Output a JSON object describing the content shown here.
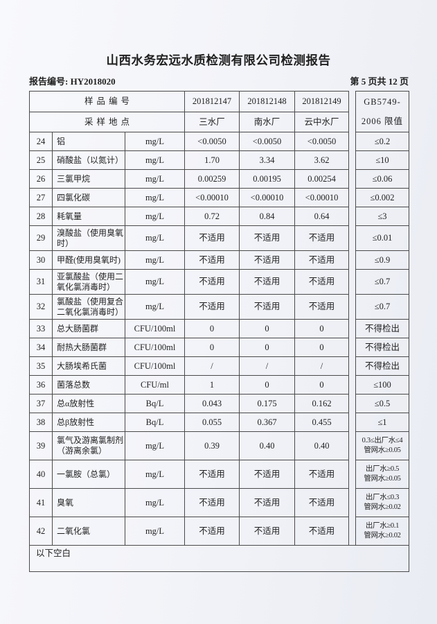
{
  "page": {
    "title": "山西水务宏远水质检测有限公司检测报告",
    "report_no": "报告编号: HY2018020",
    "page_info": "第 5 页共 12 页"
  },
  "table": {
    "header": {
      "sample_id_label": "样品编号",
      "location_label": "采样地点",
      "sample_ids": [
        "201812147",
        "201812148",
        "201812149"
      ],
      "locations": [
        "三水厂",
        "南水厂",
        "云中水厂"
      ],
      "limit_header": "GB5749-\n2006 限值"
    },
    "rows": [
      {
        "no": "24",
        "name": "铝",
        "unit": "mg/L",
        "values": [
          "<0.0050",
          "<0.0050",
          "<0.0050"
        ],
        "limit": "≤0.2"
      },
      {
        "no": "25",
        "name": "硝酸盐（以氮计）",
        "unit": "mg/L",
        "values": [
          "1.70",
          "3.34",
          "3.62"
        ],
        "limit": "≤10"
      },
      {
        "no": "26",
        "name": "三氯甲烷",
        "unit": "mg/L",
        "values": [
          "0.00259",
          "0.00195",
          "0.00254"
        ],
        "limit": "≤0.06"
      },
      {
        "no": "27",
        "name": "四氯化碳",
        "unit": "mg/L",
        "values": [
          "<0.00010",
          "<0.00010",
          "<0.00010"
        ],
        "limit": "≤0.002"
      },
      {
        "no": "28",
        "name": "耗氧量",
        "unit": "mg/L",
        "values": [
          "0.72",
          "0.84",
          "0.64"
        ],
        "limit": "≤3"
      },
      {
        "no": "29",
        "name": "溴酸盐（使用臭氧\n时）",
        "unit": "mg/L",
        "values": [
          "不适用",
          "不适用",
          "不适用"
        ],
        "limit": "≤0.01"
      },
      {
        "no": "30",
        "name": "甲醛(使用臭氧时)",
        "unit": "mg/L",
        "values": [
          "不适用",
          "不适用",
          "不适用"
        ],
        "limit": "≤0.9"
      },
      {
        "no": "31",
        "name": "亚氯酸盐（使用二\n氧化氯消毒时）",
        "unit": "mg/L",
        "values": [
          "不适用",
          "不适用",
          "不适用"
        ],
        "limit": "≤0.7"
      },
      {
        "no": "32",
        "name": "氯酸盐（使用复合\n二氧化氯消毒时）",
        "unit": "mg/L",
        "values": [
          "不适用",
          "不适用",
          "不适用"
        ],
        "limit": "≤0.7"
      },
      {
        "no": "33",
        "name": "总大肠菌群",
        "unit": "CFU/100ml",
        "values": [
          "0",
          "0",
          "0"
        ],
        "limit": "不得检出"
      },
      {
        "no": "34",
        "name": "耐热大肠菌群",
        "unit": "CFU/100ml",
        "values": [
          "0",
          "0",
          "0"
        ],
        "limit": "不得检出"
      },
      {
        "no": "35",
        "name": "大肠埃希氏菌",
        "unit": "CFU/100ml",
        "values": [
          "/",
          "/",
          "/"
        ],
        "limit": "不得检出"
      },
      {
        "no": "36",
        "name": "菌落总数",
        "unit": "CFU/ml",
        "values": [
          "1",
          "0",
          "0"
        ],
        "limit": "≤100"
      },
      {
        "no": "37",
        "name": "总α放射性",
        "unit": "Bq/L",
        "values": [
          "0.043",
          "0.175",
          "0.162"
        ],
        "limit": "≤0.5"
      },
      {
        "no": "38",
        "name": "总β放射性",
        "unit": "Bq/L",
        "values": [
          "0.055",
          "0.367",
          "0.455"
        ],
        "limit": "≤1"
      },
      {
        "no": "39",
        "name": "氯气及游离氯制剂\n（游离余氯）",
        "unit": "mg/L",
        "values": [
          "0.39",
          "0.40",
          "0.40"
        ],
        "limit": "0.3≤出厂水≤4\n管网水≥0.05"
      },
      {
        "no": "40",
        "name": "一氯胺（总氯）",
        "unit": "mg/L",
        "values": [
          "不适用",
          "不适用",
          "不适用"
        ],
        "limit": "出厂水≥0.5\n管网水≥0.05"
      },
      {
        "no": "41",
        "name": "臭氧",
        "unit": "mg/L",
        "values": [
          "不适用",
          "不适用",
          "不适用"
        ],
        "limit": "出厂水≤0.3\n管网水≥0.02"
      },
      {
        "no": "42",
        "name": "二氧化氯",
        "unit": "mg/L",
        "values": [
          "不适用",
          "不适用",
          "不适用"
        ],
        "limit": "出厂水≥0.1\n管网水≥0.02"
      }
    ],
    "footer_note": "以下空白"
  }
}
